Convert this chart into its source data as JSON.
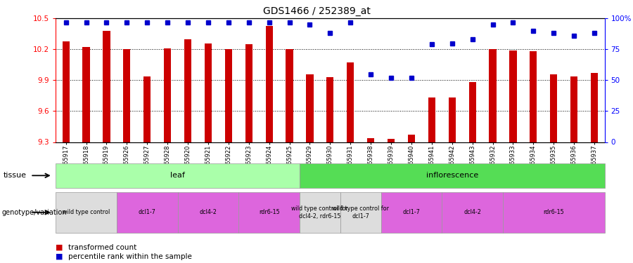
{
  "title": "GDS1466 / 252389_at",
  "samples": [
    "GSM65917",
    "GSM65918",
    "GSM65919",
    "GSM65926",
    "GSM65927",
    "GSM65928",
    "GSM65920",
    "GSM65921",
    "GSM65922",
    "GSM65923",
    "GSM65924",
    "GSM65925",
    "GSM65929",
    "GSM65930",
    "GSM65931",
    "GSM65938",
    "GSM65939",
    "GSM65940",
    "GSM65941",
    "GSM65942",
    "GSM65943",
    "GSM65932",
    "GSM65933",
    "GSM65934",
    "GSM65935",
    "GSM65936",
    "GSM65937"
  ],
  "transformed_count": [
    10.28,
    10.22,
    10.38,
    10.2,
    9.94,
    10.21,
    10.3,
    10.26,
    10.2,
    10.25,
    10.43,
    10.2,
    9.96,
    9.93,
    10.07,
    9.34,
    9.33,
    9.37,
    9.73,
    9.73,
    9.88,
    10.2,
    10.19,
    10.18,
    9.96,
    9.94,
    9.97
  ],
  "percentile_rank": [
    97,
    97,
    97,
    97,
    97,
    97,
    97,
    97,
    97,
    97,
    97,
    97,
    95,
    88,
    97,
    55,
    52,
    52,
    79,
    80,
    83,
    95,
    97,
    90,
    88,
    86,
    88
  ],
  "ylim": [
    9.3,
    10.5
  ],
  "yticks": [
    9.3,
    9.6,
    9.9,
    10.2,
    10.5
  ],
  "right_ytick_vals": [
    0,
    25,
    50,
    75,
    100
  ],
  "right_ytick_labels": [
    "0",
    "25",
    "50",
    "75",
    "100%"
  ],
  "bar_color": "#cc0000",
  "dot_color": "#0000cc",
  "tissue_groups": [
    {
      "label": "leaf",
      "start": 0,
      "end": 12,
      "color": "#aaffaa"
    },
    {
      "label": "inflorescence",
      "start": 12,
      "end": 27,
      "color": "#55dd55"
    }
  ],
  "genotype_groups": [
    {
      "label": "wild type control",
      "start": 0,
      "end": 3,
      "color": "#dddddd"
    },
    {
      "label": "dcl1-7",
      "start": 3,
      "end": 6,
      "color": "#dd66dd"
    },
    {
      "label": "dcl4-2",
      "start": 6,
      "end": 9,
      "color": "#dd66dd"
    },
    {
      "label": "rdr6-15",
      "start": 9,
      "end": 12,
      "color": "#dd66dd"
    },
    {
      "label": "wild type control for\ndcl4-2, rdr6-15",
      "start": 12,
      "end": 14,
      "color": "#dddddd"
    },
    {
      "label": "wild type control for\ndcl1-7",
      "start": 14,
      "end": 16,
      "color": "#dddddd"
    },
    {
      "label": "dcl1-7",
      "start": 16,
      "end": 19,
      "color": "#dd66dd"
    },
    {
      "label": "dcl4-2",
      "start": 19,
      "end": 22,
      "color": "#dd66dd"
    },
    {
      "label": "rdr6-15",
      "start": 22,
      "end": 27,
      "color": "#dd66dd"
    }
  ]
}
